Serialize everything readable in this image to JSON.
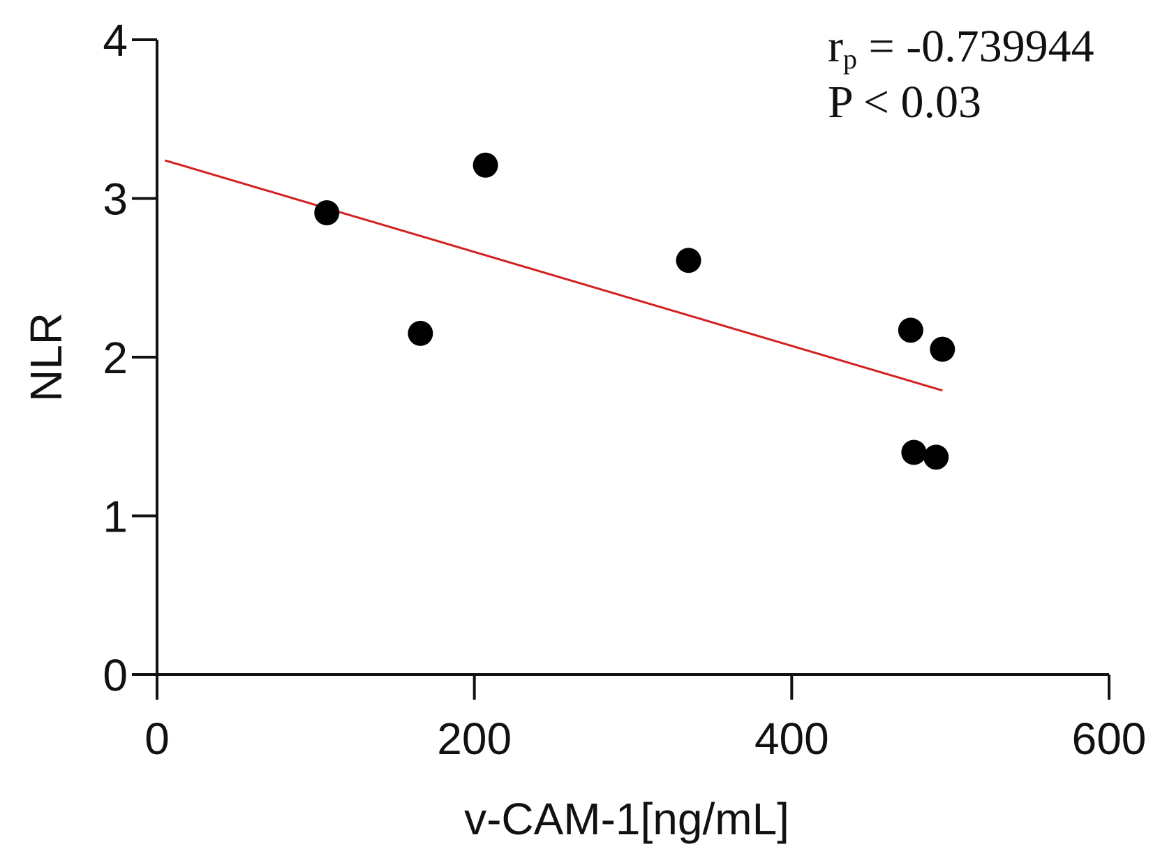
{
  "chart_data": {
    "type": "scatter",
    "title": "",
    "xlabel": "v-CAM-1[ng/mL]",
    "ylabel": "NLR",
    "xlim": [
      0,
      600
    ],
    "ylim": [
      0,
      4
    ],
    "xticks": [
      0,
      200,
      400,
      600
    ],
    "yticks": [
      0,
      1,
      2,
      3,
      4
    ],
    "xtick_labels": [
      "0",
      "200",
      "400",
      "600"
    ],
    "ytick_labels": [
      "0",
      "1",
      "2",
      "3",
      "4"
    ],
    "grid": false,
    "series": [
      {
        "name": "samples",
        "color": "#000000",
        "points": [
          {
            "x": 107,
            "y": 2.91
          },
          {
            "x": 166,
            "y": 2.15
          },
          {
            "x": 207,
            "y": 3.21
          },
          {
            "x": 335,
            "y": 2.61
          },
          {
            "x": 475,
            "y": 2.17
          },
          {
            "x": 477,
            "y": 1.4
          },
          {
            "x": 491,
            "y": 1.37
          },
          {
            "x": 495,
            "y": 2.05
          }
        ]
      }
    ],
    "regression_line": {
      "color": "#d42020",
      "x_start": 5,
      "y_start": 3.24,
      "x_end": 495,
      "y_end": 1.79
    },
    "annotation": {
      "r_symbol": "r",
      "r_subscript": "p",
      "r_value": " = -0.739944",
      "p_text": "P < 0.03"
    }
  }
}
